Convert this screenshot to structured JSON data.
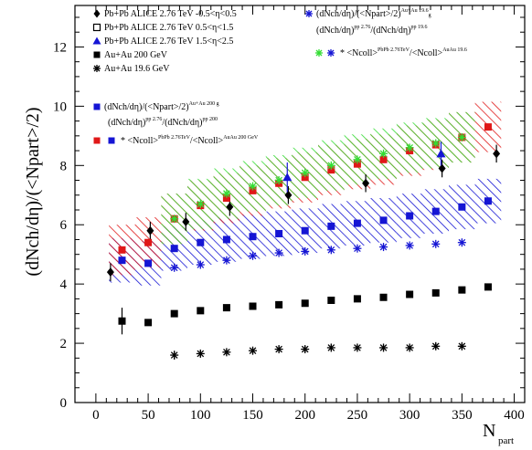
{
  "chart_data": {
    "type": "scatter",
    "title": "",
    "xlabel": "N",
    "xlabel_sub": "part",
    "ylabel": "(dNch/dη)/(<Npart>/2)",
    "xlim": [
      -20,
      410
    ],
    "ylim": [
      0,
      13.4
    ],
    "xticks": [
      "0",
      "50",
      "100",
      "150",
      "200",
      "250",
      "300",
      "350",
      "400"
    ],
    "yticks": [
      "0",
      "2",
      "4",
      "6",
      "8",
      "10",
      "12"
    ],
    "grid": false,
    "legend_position": "top-left",
    "legend": {
      "col1": [
        {
          "text": "Pb+Pb ALICE 2.76 TeV -0.5<η<0.5"
        },
        {
          "text": "Pb+Pb ALICE 2.76 TeV 0.5<η<1.5"
        },
        {
          "text": "Pb+Pb ALICE 2.76 TeV 1.5<η<2.5"
        },
        {
          "text": "Au+Au 200 GeV"
        },
        {
          "text": "Au+Au 19.6 GeV"
        }
      ],
      "blue_band": {
        "line1": "(dNch/dη)/(<Npart>/2)",
        "line1_sup": "Au+Au 200 g",
        "line2": "(dNch/dη)",
        "line2_sup": "pp 2.76",
        "line2_mid": "/(dNch/dη)",
        "line2_sup2": "pp 200"
      },
      "red_band": {
        "text": "* <Ncoll>",
        "sup1": "PbPb 2.76TeV",
        "mid": "/<Ncoll>",
        "sup2": "AuAu 200 GeV"
      },
      "green_band": {
        "line1": "(dNch/dη)/(<Npart>/2)",
        "line1_sup": "Au+Au 19.6",
        "line1_tail": "g",
        "line2": "(dNch/dη)",
        "line2_sup": "pp 2.76",
        "line2_mid": "/(dNch/dη)",
        "line2_sup2": "pp 19.6",
        "line3": "* <Ncoll>",
        "line3_sup": "PbPb 2.76TeV",
        "line3_mid": "/<Ncoll>",
        "line3_sup2": "AuAu 19.6"
      }
    },
    "colors": {
      "blue": "#1515d4",
      "red": "#e01818",
      "green": "#33dd33",
      "black": "#000000"
    },
    "series": [
      {
        "name": "Pb+Pb ALICE 2.76 TeV -0.5<η<0.5",
        "marker": "diamond",
        "color": "#000000",
        "x": [
          14,
          52,
          86,
          128,
          184,
          258,
          331,
          383
        ],
        "y": [
          4.4,
          5.8,
          6.1,
          6.6,
          7.0,
          7.4,
          7.9,
          8.4
        ],
        "yerr": [
          0.3,
          0.3,
          0.3,
          0.3,
          0.3,
          0.3,
          0.3,
          0.3
        ]
      },
      {
        "name": "Pb+Pb ALICE 2.76 TeV 0.5<η<1.5",
        "marker": "open-square",
        "color": "#000000",
        "x": [],
        "y": []
      },
      {
        "name": "Pb+Pb ALICE 2.76 TeV 1.5<η<2.5",
        "marker": "triangle",
        "color": "#1515d4",
        "x": [
          183,
          330
        ],
        "y": [
          7.6,
          8.4
        ],
        "yerr": [
          0.5,
          0.4
        ]
      },
      {
        "name": "Au+Au 200 GeV",
        "marker": "square",
        "color": "#000000",
        "x": [
          25,
          50,
          75,
          100,
          125,
          150,
          175,
          200,
          225,
          250,
          275,
          300,
          325,
          350,
          375
        ],
        "y": [
          2.75,
          2.7,
          3.0,
          3.1,
          3.2,
          3.25,
          3.3,
          3.35,
          3.45,
          3.5,
          3.55,
          3.65,
          3.7,
          3.8,
          3.9
        ],
        "yerr": [
          0.45,
          0.1,
          0.1,
          0.1,
          0.1,
          0.1,
          0.1,
          0.1,
          0.1,
          0.1,
          0.1,
          0.1,
          0.1,
          0.1,
          0.1
        ]
      },
      {
        "name": "Au+Au 19.6 GeV",
        "marker": "asterisk",
        "color": "#000000",
        "x": [
          75,
          100,
          125,
          150,
          175,
          200,
          225,
          250,
          275,
          300,
          325,
          350
        ],
        "y": [
          1.6,
          1.65,
          1.7,
          1.75,
          1.8,
          1.8,
          1.85,
          1.85,
          1.85,
          1.85,
          1.9,
          1.9
        ],
        "yerr": [
          0.15,
          0.1,
          0.1,
          0.1,
          0.1,
          0.1,
          0.1,
          0.1,
          0.1,
          0.1,
          0.1,
          0.1
        ]
      },
      {
        "name": "blue band",
        "marker": "square",
        "color": "#1515d4",
        "band": true,
        "x": [
          25,
          50,
          75,
          100,
          125,
          150,
          175,
          200,
          225,
          250,
          275,
          300,
          325,
          350,
          375
        ],
        "y": [
          4.8,
          4.7,
          5.2,
          5.4,
          5.5,
          5.6,
          5.7,
          5.8,
          5.95,
          6.05,
          6.15,
          6.3,
          6.45,
          6.6,
          6.8
        ],
        "band_half": 0.75
      },
      {
        "name": "blue asterisk",
        "marker": "asterisk",
        "color": "#1515d4",
        "x": [
          75,
          100,
          125,
          150,
          175,
          200,
          225,
          250,
          275,
          300,
          325,
          350
        ],
        "y": [
          4.55,
          4.65,
          4.8,
          4.95,
          5.05,
          5.1,
          5.15,
          5.2,
          5.25,
          5.3,
          5.35,
          5.4
        ]
      },
      {
        "name": "red band",
        "marker": "square",
        "color": "#e01818",
        "band": true,
        "x": [
          25,
          50,
          75,
          100,
          125,
          150,
          175,
          200,
          225,
          250,
          275,
          300,
          325,
          350,
          375
        ],
        "y": [
          5.15,
          5.4,
          6.2,
          6.65,
          6.9,
          7.15,
          7.4,
          7.6,
          7.85,
          8.05,
          8.2,
          8.5,
          8.7,
          8.95,
          9.3
        ],
        "band_half": 0.85
      },
      {
        "name": "green band",
        "marker": "asterisk",
        "color": "#33dd33",
        "band": true,
        "x": [
          75,
          100,
          125,
          150,
          175,
          200,
          225,
          250,
          275,
          300,
          325,
          350
        ],
        "y": [
          6.2,
          6.7,
          7.05,
          7.3,
          7.5,
          7.75,
          8.0,
          8.2,
          8.4,
          8.6,
          8.75,
          8.95
        ],
        "band_half": 0.85
      }
    ]
  }
}
